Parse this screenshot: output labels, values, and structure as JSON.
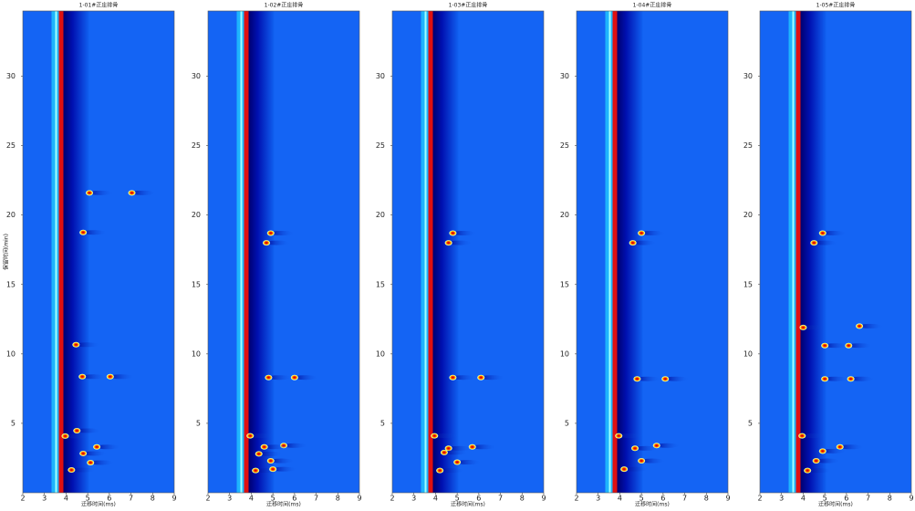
{
  "chart_data": [
    {
      "type": "heatmap",
      "title": "1-01#正庄排骨",
      "xlabel": "迁移时间(ms)",
      "ylabel": "保留时间(min)",
      "xlim": [
        2,
        9
      ],
      "ylim": [
        0,
        34.7
      ],
      "xticks": [
        2,
        3,
        4,
        5,
        6,
        7,
        8,
        9
      ],
      "yticks": [
        5,
        10,
        15,
        20,
        25,
        30
      ],
      "rip": 3.75,
      "x": [
        6.04,
        4.75,
        5.08,
        4.79,
        4.46,
        5.42,
        4.79,
        4.25,
        5.13,
        3.96,
        4.5,
        7.04
      ],
      "values": [
        8.36,
        8.36,
        21.6,
        18.75,
        10.66,
        3.3,
        2.83,
        1.64,
        2.17,
        4.08,
        4.47,
        21.6
      ]
    },
    {
      "type": "heatmap",
      "title": "1-02#正庄排骨",
      "xlabel": "迁移时间(ms)",
      "xlim": [
        2,
        9
      ],
      "ylim": [
        0,
        34.7
      ],
      "xticks": [
        2,
        3,
        4,
        5,
        6,
        7,
        8,
        9
      ],
      "yticks": [
        5,
        10,
        15,
        20,
        25,
        30
      ],
      "rip": 3.75,
      "x": [
        6.0,
        4.8,
        4.7,
        4.9,
        5.5,
        4.6,
        4.2,
        4.9,
        3.95,
        4.35,
        5.0
      ],
      "values": [
        8.3,
        8.3,
        18.0,
        18.7,
        3.4,
        3.3,
        1.6,
        2.3,
        4.1,
        2.8,
        1.7
      ]
    },
    {
      "type": "heatmap",
      "title": "1-03#正庄排骨",
      "xlabel": "迁移时间(ms)",
      "xlim": [
        2,
        9
      ],
      "ylim": [
        0,
        34.7
      ],
      "xticks": [
        2,
        3,
        4,
        5,
        6,
        7,
        8,
        9
      ],
      "yticks": [
        5,
        10,
        15,
        20,
        25,
        30
      ],
      "rip": 3.75,
      "x": [
        6.1,
        4.8,
        4.8,
        4.6,
        5.7,
        4.6,
        4.2,
        5.0,
        3.95,
        4.4
      ],
      "values": [
        8.3,
        8.3,
        18.7,
        18.0,
        3.3,
        3.2,
        1.6,
        2.2,
        4.1,
        2.9
      ]
    },
    {
      "type": "heatmap",
      "title": "1-04#正庄排骨",
      "xlabel": "迁移时间(ms)",
      "xlim": [
        2,
        9
      ],
      "ylim": [
        0,
        34.7
      ],
      "xticks": [
        2,
        3,
        4,
        5,
        6,
        7,
        8,
        9
      ],
      "yticks": [
        5,
        10,
        15,
        20,
        25,
        30
      ],
      "rip": 3.75,
      "x": [
        6.1,
        4.8,
        5.0,
        4.6,
        5.7,
        4.7,
        4.2,
        5.0,
        3.95
      ],
      "values": [
        8.2,
        8.2,
        18.7,
        18.0,
        3.4,
        3.2,
        1.7,
        2.3,
        4.1
      ]
    },
    {
      "type": "heatmap",
      "title": "1-05#正庄排骨",
      "xlabel": "迁移时间(ms)",
      "xlim": [
        2,
        9
      ],
      "ylim": [
        0,
        34.7
      ],
      "xticks": [
        2,
        3,
        4,
        5,
        6,
        7,
        8,
        9
      ],
      "yticks": [
        5,
        10,
        15,
        20,
        25,
        30
      ],
      "rip": 3.75,
      "x": [
        6.2,
        5.0,
        6.1,
        5.0,
        6.6,
        4.0,
        4.9,
        4.5,
        5.7,
        4.9,
        4.2,
        4.6,
        3.95
      ],
      "values": [
        8.2,
        8.2,
        10.6,
        10.6,
        12.0,
        11.9,
        18.7,
        18.0,
        3.3,
        3.0,
        1.6,
        2.3,
        4.1
      ]
    }
  ]
}
